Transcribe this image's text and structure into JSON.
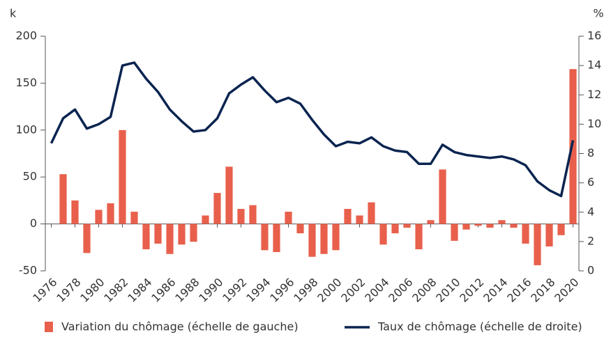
{
  "chart_data": {
    "type": "bar-line",
    "ylabel": "k",
    "y2label": "%",
    "x": [
      1976,
      1977,
      1978,
      1979,
      1980,
      1981,
      1982,
      1983,
      1984,
      1985,
      1986,
      1987,
      1988,
      1989,
      1990,
      1991,
      1992,
      1993,
      1994,
      1995,
      1996,
      1997,
      1998,
      1999,
      2000,
      2001,
      2002,
      2003,
      2004,
      2005,
      2006,
      2007,
      2008,
      2009,
      2010,
      2011,
      2012,
      2013,
      2014,
      2015,
      2016,
      2017,
      2018,
      2019,
      2020
    ],
    "xlim": [
      1975.5,
      2020.5
    ],
    "xticks": [
      1976,
      1978,
      1980,
      1982,
      1984,
      1986,
      1988,
      1990,
      1992,
      1994,
      1996,
      1998,
      2000,
      2002,
      2004,
      2006,
      2008,
      2010,
      2012,
      2014,
      2016,
      2018,
      2020
    ],
    "ylim": [
      -50,
      200
    ],
    "yticks": [
      -50,
      0,
      50,
      100,
      150,
      200
    ],
    "y2lim": [
      0,
      16
    ],
    "y2ticks": [
      0,
      2,
      4,
      6,
      8,
      10,
      12,
      14,
      16
    ],
    "series": [
      {
        "name": "Variation du chômage (échelle de gauche)",
        "type": "bar",
        "color": "#e8604c",
        "values": [
          0,
          53,
          25,
          -31,
          15,
          22,
          100,
          13,
          -27,
          -21,
          -32,
          -22,
          -19,
          9,
          33,
          61,
          16,
          20,
          -28,
          -30,
          13,
          -10,
          -35,
          -32,
          -28,
          16,
          9,
          23,
          -22,
          -10,
          -4,
          -27,
          4,
          58,
          -18,
          -6,
          -2,
          -4,
          4,
          -4,
          -21,
          -44,
          -24,
          -12,
          165
        ]
      },
      {
        "name": "Taux de chômage (échelle de droite)",
        "type": "line",
        "axis": "y2",
        "color": "#0a2450",
        "values": [
          8.7,
          10.4,
          11.0,
          9.7,
          10.0,
          10.5,
          14.0,
          14.2,
          13.1,
          12.2,
          11.0,
          10.2,
          9.5,
          9.6,
          10.4,
          12.1,
          12.7,
          13.2,
          12.3,
          11.5,
          11.8,
          11.4,
          10.3,
          9.3,
          8.5,
          8.8,
          8.7,
          9.1,
          8.5,
          8.2,
          8.1,
          7.3,
          7.3,
          8.6,
          8.1,
          7.9,
          7.8,
          7.7,
          7.8,
          7.6,
          7.2,
          6.1,
          5.5,
          5.1,
          8.9
        ]
      }
    ]
  }
}
